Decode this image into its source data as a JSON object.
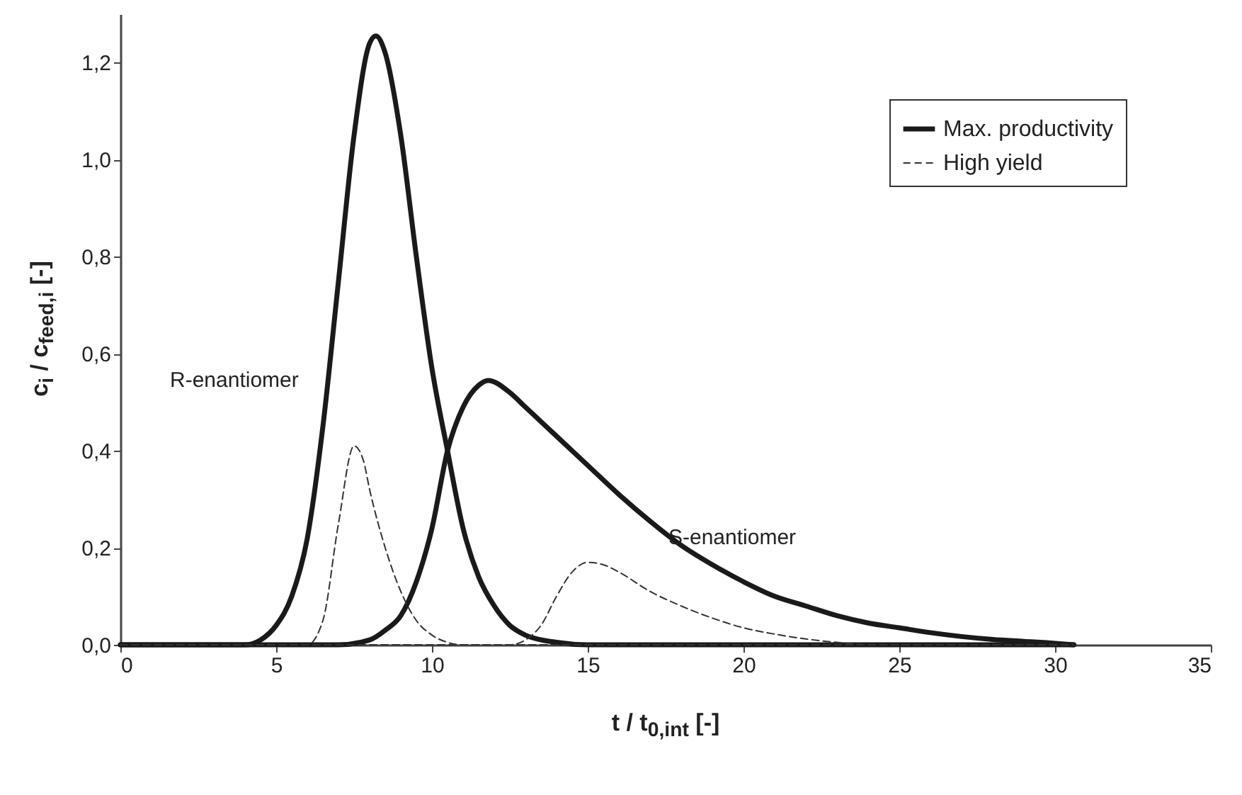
{
  "chart_data": {
    "type": "line",
    "xlabel": "t / t$_{0,int}$ [-]",
    "ylabel": "c$_{i}$ / c$_{feed,i}$ [-]",
    "xlim": [
      0,
      35
    ],
    "xticks": [
      0,
      5,
      10,
      15,
      20,
      25,
      30,
      35
    ],
    "ylim": [
      0,
      1.3
    ],
    "yticks": [
      {
        "value": 0,
        "label": "0,0"
      },
      {
        "value": 0.2,
        "label": "0,2"
      },
      {
        "value": 0.4,
        "label": "0,4"
      },
      {
        "value": 0.6,
        "label": "0,6"
      },
      {
        "value": 0.8,
        "label": "0,8"
      },
      {
        "value": 1.0,
        "label": "1,0"
      },
      {
        "value": 1.2,
        "label": "1,2"
      }
    ],
    "grid": false,
    "legend": "top right",
    "marker": "none",
    "annotations": [
      "R-enantiomer",
      "S-enantiomer"
    ],
    "series": [
      {
        "name": "Max. productivity",
        "color": "#1a1a1a",
        "line_style": "solid",
        "x": [
          0,
          4,
          4.5,
          5,
          5.5,
          6,
          6.5,
          7,
          7.5,
          8,
          8.2,
          8.5,
          9,
          9.5,
          10,
          10.5,
          11,
          11.5,
          12,
          12.5,
          13,
          14,
          15,
          30.6
        ],
        "values": [
          0,
          0,
          0.01,
          0.04,
          0.1,
          0.22,
          0.45,
          0.75,
          1.05,
          1.24,
          1.255,
          1.22,
          1.05,
          0.8,
          0.57,
          0.4,
          0.24,
          0.14,
          0.08,
          0.04,
          0.02,
          0.005,
          0,
          0
        ]
      },
      {
        "color": "#1a1a1a",
        "line_style": "solid",
        "x": [
          0,
          7,
          8,
          8.5,
          9,
          9.5,
          10,
          10.5,
          11,
          11.5,
          11.8,
          12.5,
          13,
          14,
          15,
          16,
          17,
          18,
          19,
          20,
          21,
          22,
          23,
          24,
          25,
          26,
          27,
          28,
          29,
          30,
          30.6
        ],
        "values": [
          0,
          0,
          0.01,
          0.03,
          0.06,
          0.13,
          0.24,
          0.4,
          0.49,
          0.535,
          0.545,
          0.52,
          0.49,
          0.43,
          0.37,
          0.31,
          0.255,
          0.205,
          0.165,
          0.13,
          0.1,
          0.08,
          0.06,
          0.045,
          0.035,
          0.025,
          0.017,
          0.011,
          0.007,
          0.003,
          0
        ]
      },
      {
        "name": "High yield",
        "color": "#333333",
        "line_style": "dashed",
        "x": [
          0,
          6,
          6.5,
          7,
          7.5,
          7.8,
          8,
          8.5,
          9,
          9.5,
          10,
          10.5,
          11,
          30.6
        ],
        "values": [
          0,
          0,
          0.05,
          0.25,
          0.41,
          0.38,
          0.32,
          0.2,
          0.11,
          0.05,
          0.02,
          0.005,
          0,
          0
        ]
      },
      {
        "color": "#333333",
        "line_style": "dashed",
        "x": [
          0,
          12.5,
          13,
          13.5,
          14,
          14.5,
          15,
          15.5,
          16,
          17,
          18,
          19,
          20,
          21,
          22,
          23,
          24,
          30.6
        ],
        "values": [
          0,
          0,
          0.01,
          0.04,
          0.1,
          0.15,
          0.17,
          0.165,
          0.15,
          0.11,
          0.08,
          0.055,
          0.035,
          0.022,
          0.012,
          0.005,
          0,
          0
        ]
      }
    ]
  }
}
